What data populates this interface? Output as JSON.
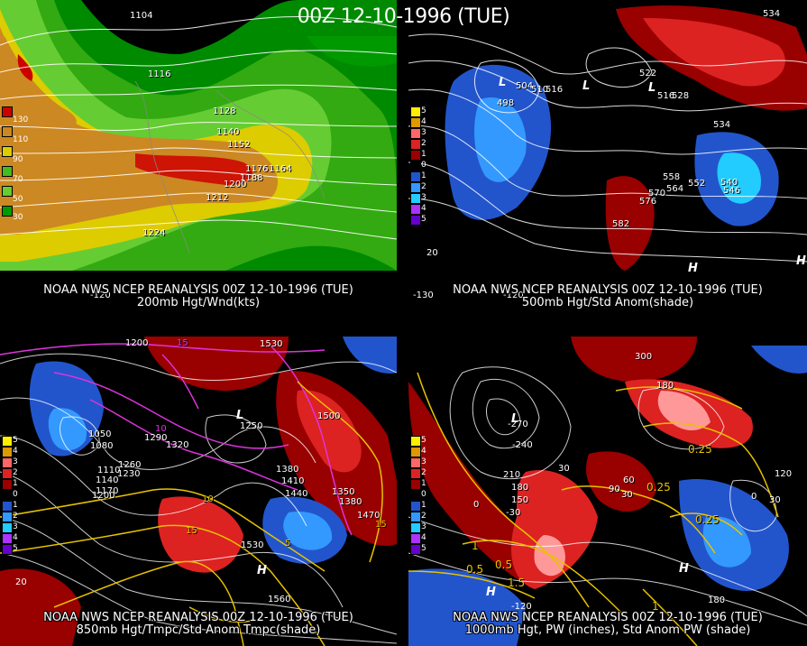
{
  "title": "00Z 12-10-1996 (TUE)",
  "panels": {
    "p1": {
      "caption_line1": "NOAA NWS NCEP REANALYSIS 00Z 12-10-1996 (TUE)",
      "caption_line2": "200mb Hgt/Wnd(kts)",
      "legend": [
        "130",
        "110",
        "90",
        "70",
        "50",
        "30"
      ],
      "legend_colors": [
        "#cc0000",
        "#cc8822",
        "#ddcc00",
        "#44bb22",
        "#66cc33",
        "#009900"
      ],
      "contour_labels": [
        "1104",
        "1116",
        "1128",
        "1140",
        "1152",
        "1176",
        "1164",
        "1188",
        "1200",
        "1212",
        "1224"
      ],
      "lon_labels": [
        "-120"
      ]
    },
    "p2": {
      "caption_line1": "NOAA NWS NCEP REANALYSIS 00Z 12-10-1996 (TUE)",
      "caption_line2": "500mb Hgt/Std Anom(shade)",
      "legend": [
        "5",
        "4",
        "3",
        "2",
        "1",
        "0",
        "1",
        "2",
        "3",
        "4",
        "5"
      ],
      "legend_colors": [
        "#ffee00",
        "#dd9900",
        "#ff6666",
        "#dd2222",
        "#990000",
        "#000000",
        "#2255cc",
        "#3399ff",
        "#22ccff",
        "#aa33ff",
        "#6600cc"
      ],
      "contour_labels": [
        "534",
        "504",
        "510",
        "516",
        "498",
        "522",
        "516",
        "528",
        "534",
        "558",
        "564",
        "552",
        "570",
        "546",
        "540",
        "576",
        "582"
      ],
      "highs_lows": [
        "L",
        "L",
        "L",
        "H",
        "H"
      ],
      "lon_labels": [
        "-130",
        "-120",
        "20"
      ]
    },
    "p3": {
      "caption_line1": "NOAA NWS NCEP REANALYSIS 00Z 12-10-1996 (TUE)",
      "caption_line2": "850mb Hgt/Tmpc/Std Anom Tmpc(shade)",
      "legend": [
        "5",
        "4",
        "3",
        "2",
        "1",
        "0",
        "1",
        "2",
        "3",
        "4",
        "5"
      ],
      "legend_colors": [
        "#ffee00",
        "#dd9900",
        "#ff6666",
        "#dd2222",
        "#990000",
        "#000000",
        "#2255cc",
        "#3399ff",
        "#22ccff",
        "#aa33ff",
        "#6600cc"
      ],
      "contour_labels": [
        "1200",
        "1530",
        "1050",
        "1080",
        "1290",
        "1320",
        "1110",
        "1140",
        "1170",
        "1200",
        "1230",
        "1260",
        "1380",
        "1410",
        "1440",
        "1350",
        "1380",
        "1470",
        "1500",
        "1530",
        "1560",
        "1250"
      ],
      "temp_labels": [
        "15",
        "10",
        "10",
        "5",
        "15",
        "15"
      ],
      "highs_lows": [
        "L",
        "H"
      ],
      "lon_labels": [
        "20"
      ]
    },
    "p4": {
      "caption_line1": "NOAA NWS NCEP REANALYSIS 00Z 12-10-1996 (TUE)",
      "caption_line2": "1000mb Hgt, PW (inches), Std Anom PW (shade)",
      "legend": [
        "5",
        "4",
        "3",
        "2",
        "1",
        "0",
        "1",
        "2",
        "3",
        "4",
        "5"
      ],
      "legend_colors": [
        "#ffee00",
        "#dd9900",
        "#ff6666",
        "#dd2222",
        "#990000",
        "#000000",
        "#2255cc",
        "#3399ff",
        "#22ccff",
        "#aa33ff",
        "#6600cc"
      ],
      "contour_labels": [
        "300",
        "180",
        "-270",
        "-240",
        "210",
        "180",
        "150",
        "30",
        "30",
        "90",
        "60",
        "0",
        "-30",
        "120",
        "30",
        "0",
        "180",
        "0.5",
        "0.5",
        "1",
        "1.5",
        "0.25",
        "0.25",
        "0.25",
        "1"
      ],
      "highs_lows": [
        "L",
        "H",
        "H"
      ],
      "lon_labels": [
        "-120"
      ]
    }
  }
}
